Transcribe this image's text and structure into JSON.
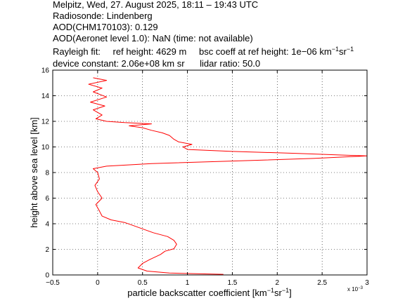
{
  "header": {
    "line1": "Melpitz, Wed, 27. August 2025, 18:11 – 19:43 UTC",
    "line2": "Radiosonde: Lindenberg",
    "line3": "AOD(CHM170103): 0.129",
    "line4": "AOD(Aeronet level 1.0): NaN   (time: not available)",
    "rayleigh_label": "Rayleigh fit:",
    "ref_height": "ref height: 4629 m",
    "bsc_coeff_prefix": "bsc coeff at ref height: 1e−06 km",
    "bsc_exp1": "−1",
    "bsc_unit2": "sr",
    "bsc_exp2": "−1",
    "device_constant": "device constant: 2.06e+08 km sr",
    "lidar_ratio": "lidar ratio: 50.0"
  },
  "chart_data": {
    "type": "line",
    "xlabel": "particle backscatter coefficient [km⁻¹sr⁻¹]",
    "xlabel_main": "particle backscatter coefficient [km",
    "xlabel_exp1": "−1",
    "xlabel_mid": "sr",
    "xlabel_exp2": "−1",
    "xlabel_end": "]",
    "ylabel": "height above sea level [km]",
    "x_multiplier_label": "x 10",
    "x_multiplier_exp": "−3",
    "xlim": [
      -0.5,
      3.0
    ],
    "ylim": [
      0,
      16
    ],
    "x_ticks": [
      -0.5,
      0,
      0.5,
      1,
      1.5,
      2,
      2.5,
      3
    ],
    "x_tick_labels": [
      "−0.5",
      "0",
      "0.5",
      "1",
      "1.5",
      "2",
      "2.5",
      "3"
    ],
    "y_ticks": [
      0,
      2,
      4,
      6,
      8,
      10,
      12,
      14,
      16
    ],
    "y_tick_labels": [
      "0",
      "2",
      "4",
      "6",
      "8",
      "10",
      "12",
      "14",
      "16"
    ],
    "grid": true,
    "line_color": "#ff0000",
    "series": [
      {
        "points": [
          [
            1.4,
            0.05
          ],
          [
            0.8,
            0.15
          ],
          [
            0.55,
            0.3
          ],
          [
            0.45,
            0.55
          ],
          [
            0.5,
            0.9
          ],
          [
            0.58,
            1.2
          ],
          [
            0.7,
            1.6
          ],
          [
            0.75,
            1.85
          ],
          [
            0.85,
            2.05
          ],
          [
            0.88,
            2.4
          ],
          [
            0.85,
            2.7
          ],
          [
            0.78,
            3.0
          ],
          [
            0.62,
            3.3
          ],
          [
            0.5,
            3.6
          ],
          [
            0.4,
            3.85
          ],
          [
            0.3,
            4.1
          ],
          [
            0.15,
            4.3
          ],
          [
            0.05,
            4.6
          ],
          [
            0.02,
            5.0
          ],
          [
            -0.02,
            5.5
          ],
          [
            0.05,
            6.0
          ],
          [
            0.0,
            6.5
          ],
          [
            -0.03,
            7.0
          ],
          [
            0.02,
            7.5
          ],
          [
            0.0,
            8.0
          ],
          [
            -0.05,
            8.3
          ],
          [
            0.1,
            8.5
          ],
          [
            0.6,
            8.7
          ],
          [
            1.5,
            8.9
          ],
          [
            2.4,
            9.1
          ],
          [
            3.0,
            9.3
          ],
          [
            2.2,
            9.5
          ],
          [
            1.5,
            9.65
          ],
          [
            1.0,
            9.8
          ],
          [
            0.95,
            10.0
          ],
          [
            1.05,
            10.2
          ],
          [
            0.9,
            10.4
          ],
          [
            0.85,
            10.6
          ],
          [
            0.8,
            10.9
          ],
          [
            0.72,
            11.1
          ],
          [
            0.6,
            11.3
          ],
          [
            0.5,
            11.5
          ],
          [
            0.35,
            11.65
          ],
          [
            0.6,
            11.8
          ],
          [
            0.3,
            11.9
          ],
          [
            0.1,
            12.0
          ],
          [
            -0.02,
            12.2
          ],
          [
            0.05,
            12.5
          ],
          [
            -0.05,
            12.9
          ],
          [
            0.08,
            13.2
          ],
          [
            -0.08,
            13.5
          ],
          [
            0.1,
            13.9
          ],
          [
            -0.05,
            14.3
          ],
          [
            0.05,
            14.6
          ],
          [
            -0.1,
            14.9
          ],
          [
            0.1,
            15.2
          ],
          [
            -0.05,
            15.4
          ]
        ]
      }
    ]
  }
}
